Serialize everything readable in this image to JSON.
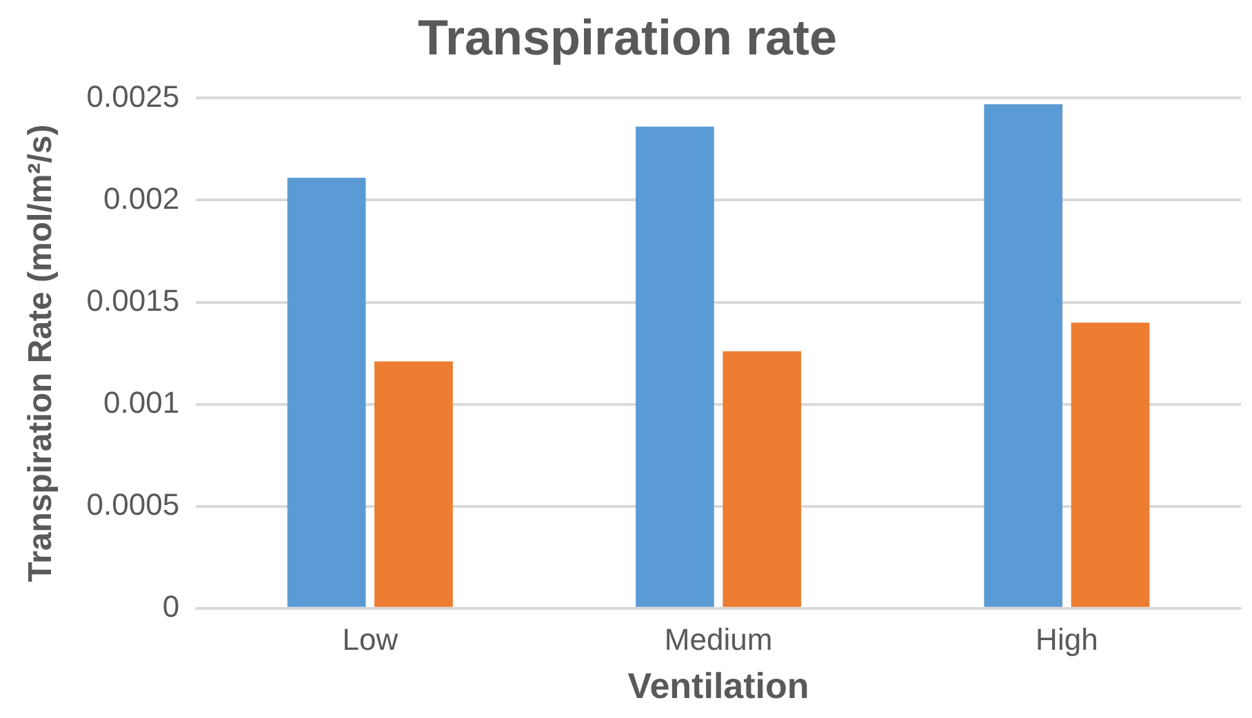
{
  "chart_data": {
    "type": "bar",
    "title": "Transpiration rate",
    "xlabel": "Ventilation",
    "ylabel": "Transpiration Rate (mol/m²/s)",
    "categories": [
      "Low",
      "Medium",
      "High"
    ],
    "series": [
      {
        "color": "#5b9bd5",
        "values": [
          0.00211,
          0.00236,
          0.00247
        ]
      },
      {
        "color": "#ed7d31",
        "values": [
          0.00121,
          0.00126,
          0.0014
        ]
      }
    ],
    "ylim": [
      0,
      0.0025
    ],
    "yticks": [
      0,
      0.0005,
      0.001,
      0.0015,
      0.002,
      0.0025
    ],
    "grid": "y"
  }
}
